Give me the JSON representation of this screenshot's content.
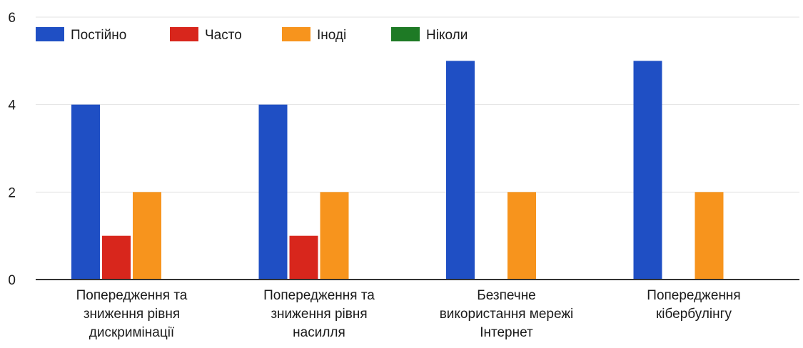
{
  "chart_data": {
    "type": "bar",
    "title": "",
    "xlabel": "",
    "ylabel": "",
    "ylim": [
      0,
      6
    ],
    "yticks": [
      0,
      2,
      4,
      6
    ],
    "grid": true,
    "legend_position": "top-left",
    "categories": [
      [
        "Попередження та",
        "зниження рівня",
        "дискримінації"
      ],
      [
        "Попередження та",
        "зниження рівня",
        "насилля"
      ],
      [
        "Безпечне",
        "використання мережі",
        "Інтернет"
      ],
      [
        "Попередження",
        "кібербулінгу"
      ]
    ],
    "series": [
      {
        "name": "Постійно",
        "color": "#1f4fc4",
        "values": [
          4,
          4,
          5,
          5
        ]
      },
      {
        "name": "Часто",
        "color": "#d8261c",
        "values": [
          1,
          1,
          0,
          0
        ]
      },
      {
        "name": "Іноді",
        "color": "#f7941d",
        "values": [
          2,
          2,
          2,
          2
        ]
      },
      {
        "name": "Ніколи",
        "color": "#1e7a25",
        "values": [
          0,
          0,
          0,
          0
        ]
      }
    ]
  }
}
